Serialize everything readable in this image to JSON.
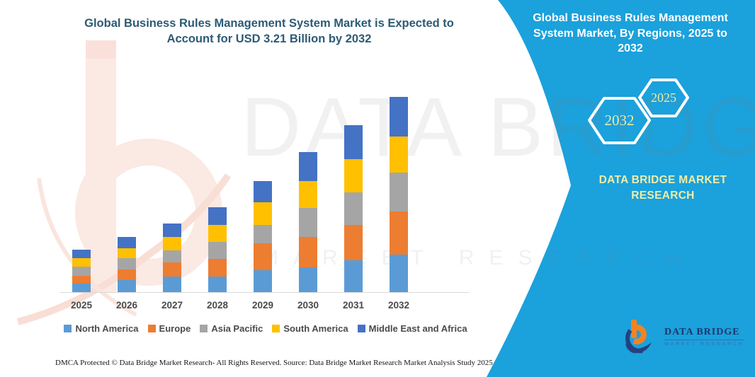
{
  "left_panel": {
    "title": "Global Business Rules Management System Market is Expected to Account for USD 3.21 Billion by 2032",
    "footer_left": "DMCA Protected © Data Bridge Market Research- All Rights Reserved.",
    "footer_right": "Source: Data Bridge Market Research Market Analysis Study 2025"
  },
  "right_panel": {
    "title": "Global Business Rules Management System Market, By Regions, 2025 to 2032",
    "hexagons": [
      {
        "label": "2032"
      },
      {
        "label": "2025"
      }
    ],
    "brand": "DATA BRIDGE MARKET RESEARCH",
    "panel_color": "#1ba1dc",
    "accent_text_color": "#f0eda6"
  },
  "watermark": {
    "line1": "DATA BRIDGE",
    "line2": "MARKET RESEARCH"
  },
  "logo": {
    "name": "DATA BRIDGE",
    "sub": "MARKET RESEARCH"
  },
  "chart_data": {
    "type": "bar",
    "stacked": true,
    "title": "Global Business Rules Management System Market is Expected to Account for USD 3.21 Billion by 2032",
    "unit": "USD Billion",
    "categories": [
      "2025",
      "2026",
      "2027",
      "2028",
      "2029",
      "2030",
      "2031",
      "2032"
    ],
    "series": [
      {
        "name": "North America",
        "color": "#5B9BD5",
        "values": [
          0.14,
          0.2,
          0.26,
          0.26,
          0.36,
          0.41,
          0.52,
          0.62
        ]
      },
      {
        "name": "Europe",
        "color": "#ED7D31",
        "values": [
          0.13,
          0.17,
          0.23,
          0.29,
          0.44,
          0.5,
          0.59,
          0.7
        ]
      },
      {
        "name": "Asia Pacific",
        "color": "#A5A5A5",
        "values": [
          0.15,
          0.19,
          0.2,
          0.27,
          0.31,
          0.47,
          0.53,
          0.64
        ]
      },
      {
        "name": "South America",
        "color": "#FFC000",
        "values": [
          0.14,
          0.16,
          0.22,
          0.28,
          0.37,
          0.44,
          0.55,
          0.6
        ]
      },
      {
        "name": "Middle East and Africa",
        "color": "#4472C4",
        "values": [
          0.14,
          0.19,
          0.22,
          0.29,
          0.35,
          0.48,
          0.55,
          0.65
        ]
      }
    ],
    "totals": [
      0.7,
      0.91,
      1.13,
      1.39,
      1.83,
      2.3,
      2.74,
      3.21
    ],
    "xlabel": "",
    "ylabel": "",
    "ylim": [
      0,
      3.5
    ],
    "grid": false,
    "legend_position": "bottom"
  }
}
